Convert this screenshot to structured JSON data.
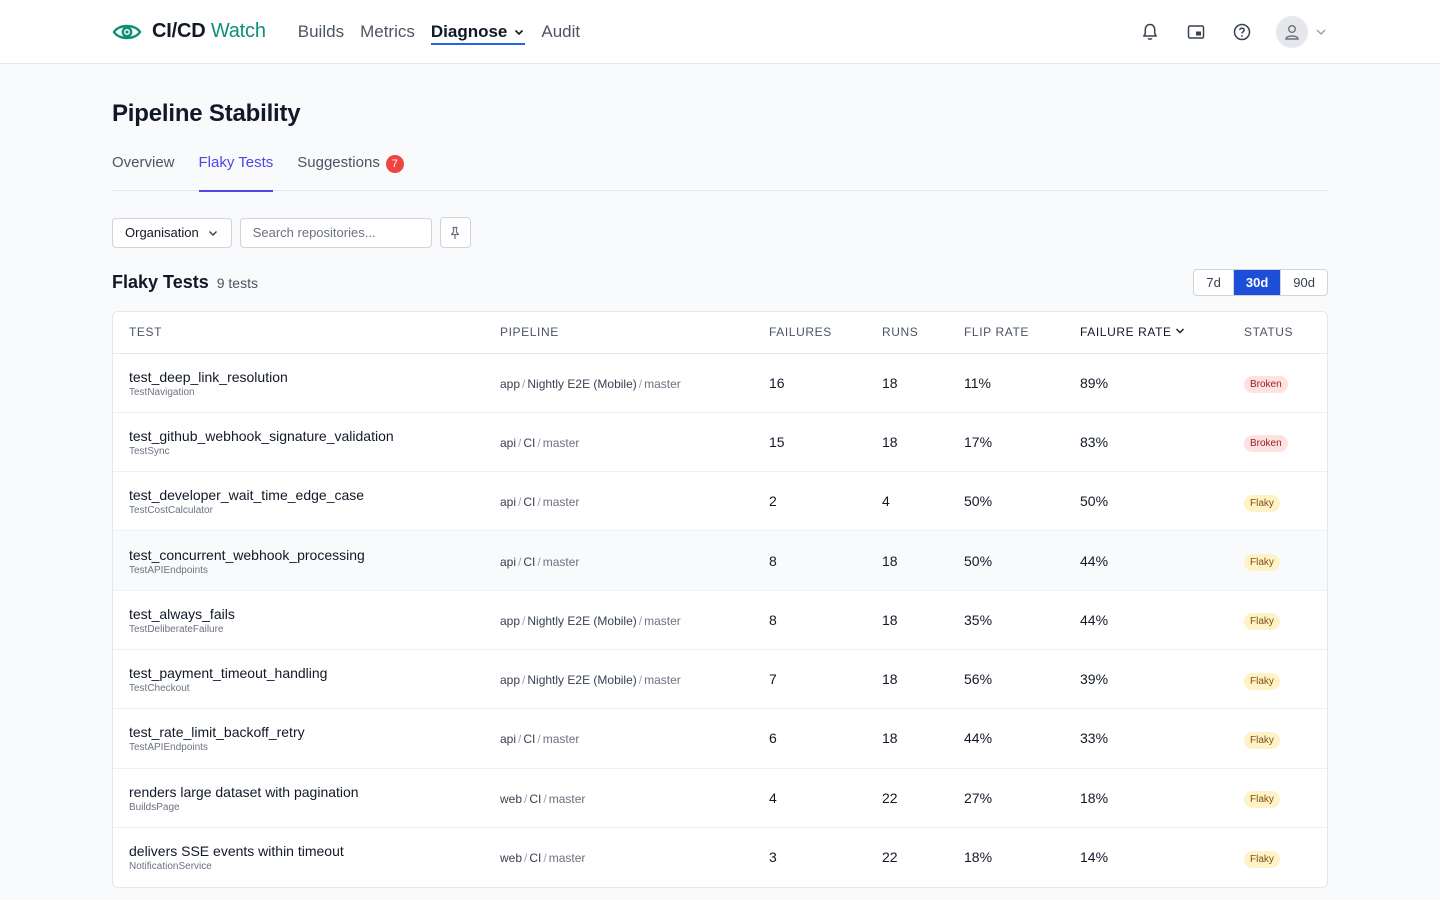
{
  "brand": {
    "name_bold": "CI/CD",
    "name_light": "Watch",
    "accent": "#0f8f7a"
  },
  "nav": [
    {
      "label": "Builds",
      "active": false
    },
    {
      "label": "Metrics",
      "active": false
    },
    {
      "label": "Diagnose",
      "active": true,
      "dropdown": true
    },
    {
      "label": "Audit",
      "active": false
    }
  ],
  "top_icons": [
    "bell-icon",
    "picture-in-picture-icon",
    "help-circle-icon",
    "user-icon"
  ],
  "page": {
    "title": "Pipeline Stability"
  },
  "tabs": [
    {
      "label": "Overview",
      "active": false
    },
    {
      "label": "Flaky Tests",
      "active": true
    },
    {
      "label": "Suggestions",
      "active": false,
      "badge": "7"
    }
  ],
  "filters": {
    "organisation_label": "Organisation",
    "search_placeholder": "Search repositories..."
  },
  "section": {
    "title": "Flaky Tests",
    "count": "9 tests",
    "ranges": [
      {
        "label": "7d",
        "active": false
      },
      {
        "label": "30d",
        "active": true
      },
      {
        "label": "90d",
        "active": false
      }
    ]
  },
  "table": {
    "headers": {
      "test": "Test",
      "pipeline": "Pipeline",
      "failures": "Failures",
      "runs": "Runs",
      "flip_rate": "Flip Rate",
      "failure_rate": "Failure Rate",
      "status": "Status"
    },
    "rows": [
      {
        "name": "test_deep_link_resolution",
        "class": "TestNavigation",
        "repo": "app",
        "pipeline": "Nightly E2E (Mobile)",
        "branch": "master",
        "failures": "16",
        "runs": "18",
        "flip_rate": "11%",
        "failure_rate": "89%",
        "status": "Broken"
      },
      {
        "name": "test_github_webhook_signature_validation",
        "class": "TestSync",
        "repo": "api",
        "pipeline": "CI",
        "branch": "master",
        "failures": "15",
        "runs": "18",
        "flip_rate": "17%",
        "failure_rate": "83%",
        "status": "Broken"
      },
      {
        "name": "test_developer_wait_time_edge_case",
        "class": "TestCostCalculator",
        "repo": "api",
        "pipeline": "CI",
        "branch": "master",
        "failures": "2",
        "runs": "4",
        "flip_rate": "50%",
        "failure_rate": "50%",
        "status": "Flaky"
      },
      {
        "name": "test_concurrent_webhook_processing",
        "class": "TestAPIEndpoints",
        "repo": "api",
        "pipeline": "CI",
        "branch": "master",
        "failures": "8",
        "runs": "18",
        "flip_rate": "50%",
        "failure_rate": "44%",
        "status": "Flaky"
      },
      {
        "name": "test_always_fails",
        "class": "TestDeliberateFailure",
        "repo": "app",
        "pipeline": "Nightly E2E (Mobile)",
        "branch": "master",
        "failures": "8",
        "runs": "18",
        "flip_rate": "35%",
        "failure_rate": "44%",
        "status": "Flaky"
      },
      {
        "name": "test_payment_timeout_handling",
        "class": "TestCheckout",
        "repo": "app",
        "pipeline": "Nightly E2E (Mobile)",
        "branch": "master",
        "failures": "7",
        "runs": "18",
        "flip_rate": "56%",
        "failure_rate": "39%",
        "status": "Flaky"
      },
      {
        "name": "test_rate_limit_backoff_retry",
        "class": "TestAPIEndpoints",
        "repo": "api",
        "pipeline": "CI",
        "branch": "master",
        "failures": "6",
        "runs": "18",
        "flip_rate": "44%",
        "failure_rate": "33%",
        "status": "Flaky"
      },
      {
        "name": "renders large dataset with pagination",
        "class": "BuildsPage",
        "repo": "web",
        "pipeline": "CI",
        "branch": "master",
        "failures": "4",
        "runs": "22",
        "flip_rate": "27%",
        "failure_rate": "18%",
        "status": "Flaky"
      },
      {
        "name": "delivers SSE events within timeout",
        "class": "NotificationService",
        "repo": "web",
        "pipeline": "CI",
        "branch": "master",
        "failures": "3",
        "runs": "22",
        "flip_rate": "18%",
        "failure_rate": "14%",
        "status": "Flaky"
      }
    ]
  }
}
